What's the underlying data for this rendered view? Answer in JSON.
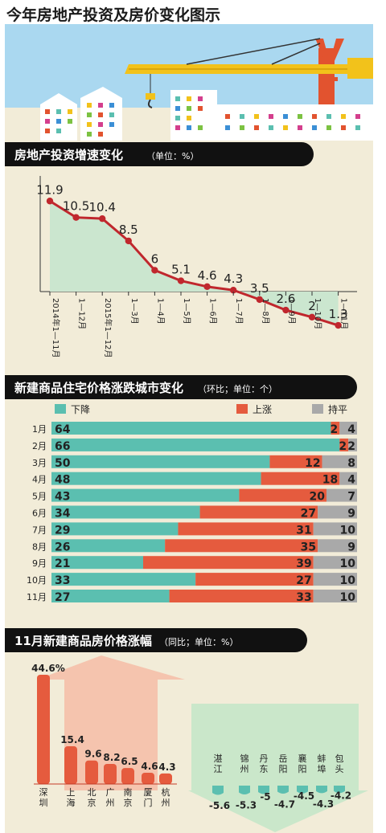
{
  "page_title": "今年房地产投资及房价变化图示",
  "sections": {
    "investment": {
      "title": "房地产投资增速变化",
      "unit": "（单位：%）"
    },
    "citycount": {
      "title": "新建商品住宅价格涨跌城市变化",
      "unit": "（环比；单位：个）"
    },
    "yoy": {
      "title": "11月新建商品房价格涨幅",
      "unit": "（同比；单位：%）"
    }
  },
  "colors": {
    "down": "#5bbfb0",
    "up": "#e55b3e",
    "flat": "#a9a9a9",
    "line": "#c0272d",
    "area": "#cbe6cf"
  },
  "chart_data": [
    {
      "type": "line",
      "title": "房地产投资增速变化",
      "unit": "单位：%",
      "categories": [
        "2014年1—11月",
        "1—12月",
        "2015年1—12月",
        "1—3月",
        "1—4月",
        "1—5月",
        "1—6月",
        "1—7月",
        "1—8月",
        "1—9月",
        "1—10月",
        "1—11月"
      ],
      "values": [
        11.9,
        10.5,
        10.4,
        8.5,
        6,
        5.1,
        4.6,
        4.3,
        3.5,
        2.6,
        2,
        1.3
      ],
      "value_labels": [
        "11.9",
        "10.5",
        "10.4",
        "8.5",
        "6",
        "5.1",
        "4.6",
        "4.3",
        "3.5",
        "2.6",
        "2",
        "1.3"
      ],
      "ylim": [
        0,
        14
      ]
    },
    {
      "type": "bar",
      "stacked": true,
      "orientation": "horizontal",
      "title": "新建商品住宅价格涨跌城市变化",
      "unit": "环比；单位：个",
      "categories": [
        "1月",
        "2月",
        "3月",
        "4月",
        "5月",
        "6月",
        "7月",
        "8月",
        "9月",
        "10月",
        "11月"
      ],
      "series": [
        {
          "name": "下降",
          "values": [
            64,
            66,
            50,
            48,
            43,
            34,
            29,
            26,
            21,
            33,
            27
          ]
        },
        {
          "name": "上涨",
          "values": [
            2,
            2,
            12,
            18,
            20,
            27,
            31,
            35,
            39,
            27,
            33
          ]
        },
        {
          "name": "持平",
          "values": [
            4,
            2,
            8,
            4,
            7,
            9,
            10,
            9,
            10,
            10,
            10
          ]
        }
      ],
      "total": 70
    },
    {
      "type": "bar",
      "title": "11月新建商品房价格涨幅",
      "unit": "同比；单位：%",
      "rising": {
        "categories": [
          "深圳",
          "上海",
          "北京",
          "广州",
          "南京",
          "厦门",
          "杭州"
        ],
        "values": [
          44.6,
          15.4,
          9.6,
          8.2,
          6.5,
          4.6,
          4.3
        ],
        "labels": [
          "44.6%",
          "15.4",
          "9.6",
          "8.2",
          "6.5",
          "4.6",
          "4.3"
        ]
      },
      "falling": {
        "categories": [
          "湛江",
          "锦州",
          "丹东",
          "岳阳",
          "襄阳",
          "蚌埠",
          "包头"
        ],
        "values": [
          -5.6,
          -5.3,
          -5,
          -4.7,
          -4.5,
          -4.3,
          -4.2
        ],
        "labels": [
          "-5.6",
          "-5.3",
          "-5",
          "-4.7",
          "-4.5",
          "-4.3",
          "-4.2"
        ]
      }
    }
  ]
}
